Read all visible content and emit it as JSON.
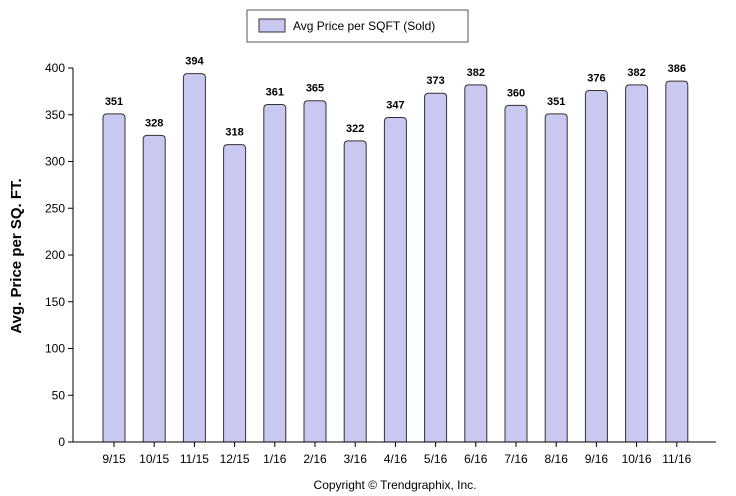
{
  "legend": {
    "label": "Avg Price per SQFT (Sold)",
    "swatch_color": "#c8c8f0"
  },
  "footer": {
    "copyright": "Copyright © Trendgraphix, Inc."
  },
  "chart_data": {
    "type": "bar",
    "title": "",
    "xlabel": "",
    "ylabel": "Avg. Price per SQ. FT.",
    "ylim": [
      0,
      400
    ],
    "yticks": [
      0,
      50,
      100,
      150,
      200,
      250,
      300,
      350,
      400
    ],
    "categories": [
      "9/15",
      "10/15",
      "11/15",
      "12/15",
      "1/16",
      "2/16",
      "3/16",
      "4/16",
      "5/16",
      "6/16",
      "7/16",
      "8/16",
      "9/16",
      "10/16",
      "11/16"
    ],
    "series": [
      {
        "name": "Avg Price per SQFT (Sold)",
        "values": [
          351,
          328,
          394,
          318,
          361,
          365,
          322,
          347,
          373,
          382,
          360,
          351,
          376,
          382,
          386
        ],
        "color": "#c8c8f0",
        "edge_color": "#333333"
      }
    ],
    "data_labels": true,
    "legend_position": "top",
    "grid": false
  }
}
